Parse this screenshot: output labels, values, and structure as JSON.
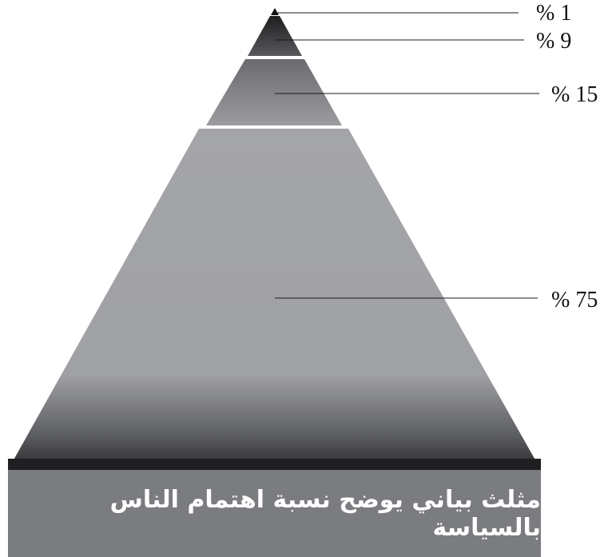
{
  "chart_data": {
    "type": "pyramid",
    "title": "مثلث بياني يوضح نسبة اهتمام الناس بالسياسة",
    "segments": [
      {
        "label": "% 1",
        "value": 1
      },
      {
        "label": "% 9",
        "value": 9
      },
      {
        "label": "% 15",
        "value": 15
      },
      {
        "label": "% 75",
        "value": 75
      }
    ]
  },
  "colors": {
    "tier_dark": "#2e2e30",
    "tier_mid": "#4a4b4e",
    "tier_light": "#8c8d90",
    "tier_base": "#a6a7aa",
    "base_band": "#232325",
    "caption_bg": "#7b7c80",
    "caption_text": "#ffffff",
    "separator": "#ffffff",
    "leader_line": "#1a1a1a"
  }
}
